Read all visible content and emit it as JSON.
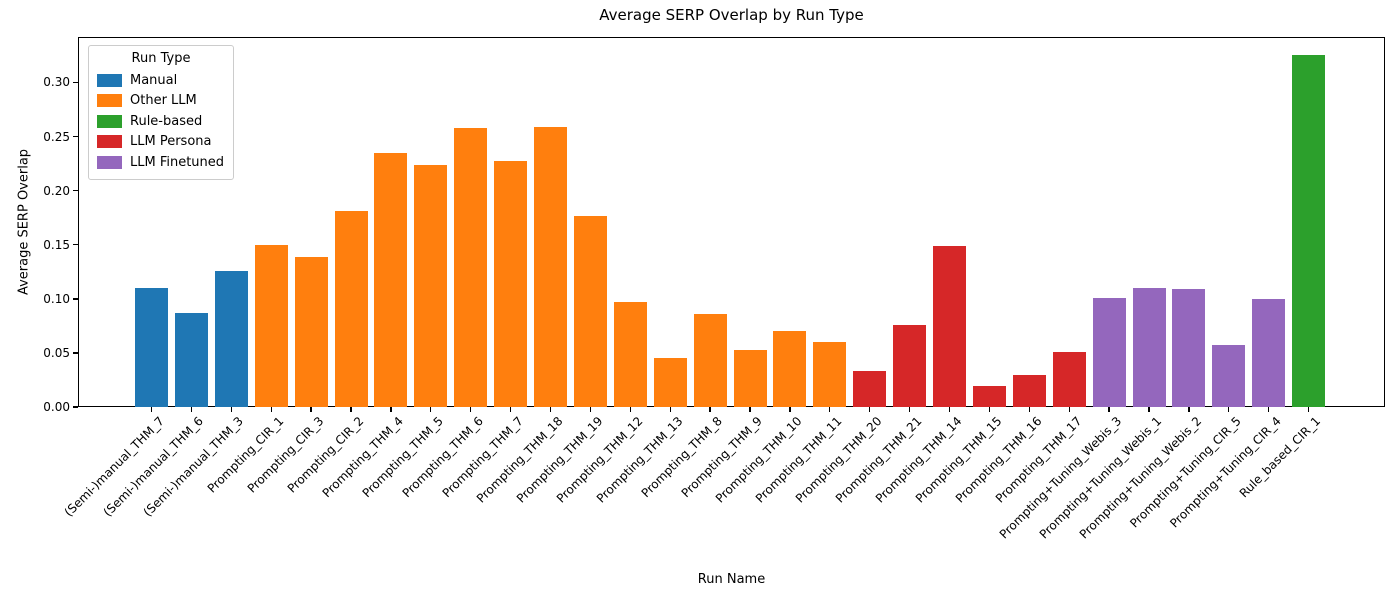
{
  "chart": {
    "title": "Average SERP Overlap by Run Type",
    "xlabel": "Run Name",
    "ylabel": "Average SERP Overlap"
  },
  "chart_data": {
    "type": "bar",
    "title": "Average SERP Overlap by Run Type",
    "xlabel": "Run Name",
    "ylabel": "Average SERP Overlap",
    "grid": false,
    "ylim": [
      0,
      0.342
    ],
    "yticks": [
      "0.00",
      "0.05",
      "0.10",
      "0.15",
      "0.20",
      "0.25",
      "0.30"
    ],
    "legend": {
      "title": "Run Type",
      "position": "upper left",
      "entries": [
        {
          "label": "Manual",
          "color": "#1f77b4"
        },
        {
          "label": "Other LLM",
          "color": "#ff7f0e"
        },
        {
          "label": "Rule-based",
          "color": "#2ca02c"
        },
        {
          "label": "LLM Persona",
          "color": "#d62728"
        },
        {
          "label": "LLM Finetuned",
          "color": "#9467bd"
        }
      ]
    },
    "bars": [
      {
        "name": "(Semi-)manual_THM_7",
        "value": 0.11,
        "run_type": "Manual"
      },
      {
        "name": "(Semi-)manual_THM_6",
        "value": 0.087,
        "run_type": "Manual"
      },
      {
        "name": "(Semi-)manual_THM_3",
        "value": 0.126,
        "run_type": "Manual"
      },
      {
        "name": "Prompting_CIR_1",
        "value": 0.15,
        "run_type": "Other LLM"
      },
      {
        "name": "Prompting_CIR_3",
        "value": 0.139,
        "run_type": "Other LLM"
      },
      {
        "name": "Prompting_CIR_2",
        "value": 0.181,
        "run_type": "Other LLM"
      },
      {
        "name": "Prompting_THM_4",
        "value": 0.235,
        "run_type": "Other LLM"
      },
      {
        "name": "Prompting_THM_5",
        "value": 0.224,
        "run_type": "Other LLM"
      },
      {
        "name": "Prompting_THM_6",
        "value": 0.258,
        "run_type": "Other LLM"
      },
      {
        "name": "Prompting_THM_7",
        "value": 0.227,
        "run_type": "Other LLM"
      },
      {
        "name": "Prompting_THM_18",
        "value": 0.259,
        "run_type": "Other LLM"
      },
      {
        "name": "Prompting_THM_19",
        "value": 0.177,
        "run_type": "Other LLM"
      },
      {
        "name": "Prompting_THM_12",
        "value": 0.097,
        "run_type": "Other LLM"
      },
      {
        "name": "Prompting_THM_13",
        "value": 0.045,
        "run_type": "Other LLM"
      },
      {
        "name": "Prompting_THM_8",
        "value": 0.086,
        "run_type": "Other LLM"
      },
      {
        "name": "Prompting_THM_9",
        "value": 0.053,
        "run_type": "Other LLM"
      },
      {
        "name": "Prompting_THM_10",
        "value": 0.07,
        "run_type": "Other LLM"
      },
      {
        "name": "Prompting_THM_11",
        "value": 0.06,
        "run_type": "Other LLM"
      },
      {
        "name": "Prompting_THM_20",
        "value": 0.033,
        "run_type": "LLM Persona"
      },
      {
        "name": "Prompting_THM_21",
        "value": 0.076,
        "run_type": "LLM Persona"
      },
      {
        "name": "Prompting_THM_14",
        "value": 0.149,
        "run_type": "LLM Persona"
      },
      {
        "name": "Prompting_THM_15",
        "value": 0.019,
        "run_type": "LLM Persona"
      },
      {
        "name": "Prompting_THM_16",
        "value": 0.03,
        "run_type": "LLM Persona"
      },
      {
        "name": "Prompting_THM_17",
        "value": 0.051,
        "run_type": "LLM Persona"
      },
      {
        "name": "Prompting+Tuning_Webis_3",
        "value": 0.101,
        "run_type": "LLM Finetuned"
      },
      {
        "name": "Prompting+Tuning_Webis_1",
        "value": 0.11,
        "run_type": "LLM Finetuned"
      },
      {
        "name": "Prompting+Tuning_Webis_2",
        "value": 0.109,
        "run_type": "LLM Finetuned"
      },
      {
        "name": "Prompting+Tuning_CIR_5",
        "value": 0.057,
        "run_type": "LLM Finetuned"
      },
      {
        "name": "Prompting+Tuning_CIR_4",
        "value": 0.1,
        "run_type": "LLM Finetuned"
      },
      {
        "name": "Rule_based_CIR_1",
        "value": 0.325,
        "run_type": "Rule-based"
      }
    ]
  }
}
